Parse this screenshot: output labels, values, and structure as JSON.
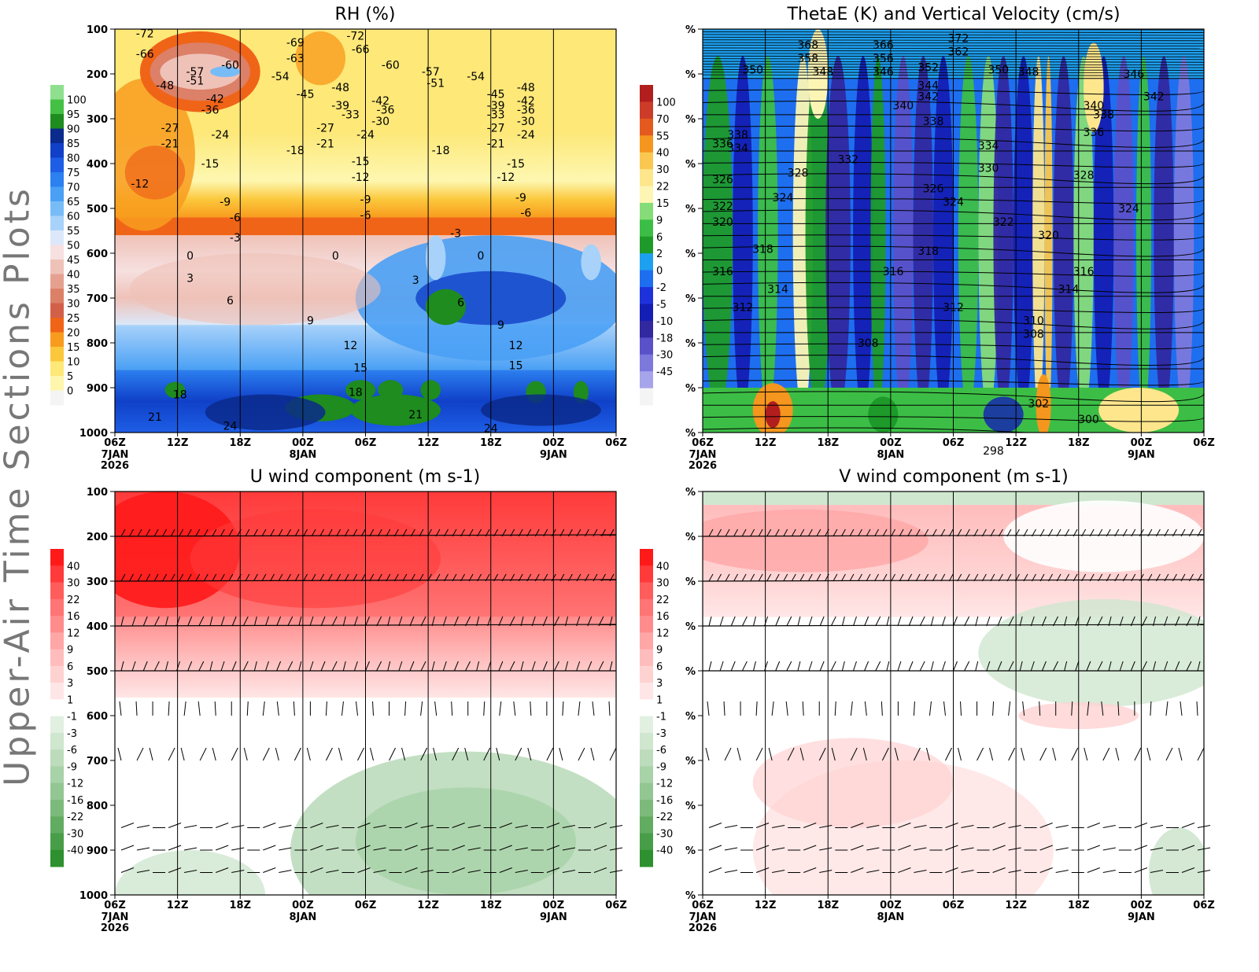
{
  "page": {
    "side_title": "Upper-Air Time Sections Plots"
  },
  "time_axis": {
    "labels": [
      "06Z",
      "12Z",
      "18Z",
      "00Z",
      "06Z",
      "12Z",
      "18Z",
      "00Z",
      "06Z"
    ],
    "date_labels": [
      {
        "index": 0,
        "lines": [
          "7JAN",
          "2026"
        ]
      },
      {
        "index": 3,
        "lines": [
          "8JAN"
        ]
      },
      {
        "index": 7,
        "lines": [
          "9JAN"
        ]
      }
    ]
  },
  "chart_data": [
    {
      "id": "rh",
      "type": "heatmap",
      "title": "RH (%)",
      "ylabel": "",
      "y_ticks": [
        "100",
        "200",
        "300",
        "400",
        "500",
        "600",
        "700",
        "800",
        "900",
        "1000"
      ],
      "ylim": [
        1000,
        100
      ],
      "colorbar": {
        "labels": [
          "100",
          "95",
          "90",
          "85",
          "80",
          "75",
          "70",
          "65",
          "60",
          "55",
          "50",
          "45",
          "40",
          "35",
          "30",
          "25",
          "20",
          "15",
          "10",
          "5",
          "0"
        ],
        "colors": [
          "#8ee08e",
          "#44c044",
          "#1e8c1e",
          "#0a2a8c",
          "#1040c8",
          "#1e5ee6",
          "#2c80f0",
          "#4aa0f5",
          "#78bcf7",
          "#a8d2fa",
          "#dce8fa",
          "#f6e0e0",
          "#efc2b8",
          "#e6a090",
          "#dc8068",
          "#d26048",
          "#f06418",
          "#f89c1e",
          "#fbc83c",
          "#fde878",
          "#fdf6ac",
          "#f4f4f4"
        ]
      },
      "contours": [
        {
          "text": "-72",
          "t": 0.06,
          "p": 110
        },
        {
          "text": "-66",
          "t": 0.06,
          "p": 155
        },
        {
          "text": "-69",
          "t": 0.36,
          "p": 130
        },
        {
          "text": "-72",
          "t": 0.48,
          "p": 115
        },
        {
          "text": "-66",
          "t": 0.49,
          "p": 145
        },
        {
          "text": "-63",
          "t": 0.36,
          "p": 165
        },
        {
          "text": "-60",
          "t": 0.55,
          "p": 180
        },
        {
          "text": "-57",
          "t": 0.63,
          "p": 195
        },
        {
          "text": "-60",
          "t": 0.23,
          "p": 180
        },
        {
          "text": "-57",
          "t": 0.16,
          "p": 195
        },
        {
          "text": "-51",
          "t": 0.16,
          "p": 215
        },
        {
          "text": "-54",
          "t": 0.33,
          "p": 205
        },
        {
          "text": "-48",
          "t": 0.1,
          "p": 225
        },
        {
          "text": "-51",
          "t": 0.64,
          "p": 220
        },
        {
          "text": "-54",
          "t": 0.72,
          "p": 205
        },
        {
          "text": "-48",
          "t": 0.45,
          "p": 230
        },
        {
          "text": "-48",
          "t": 0.82,
          "p": 230
        },
        {
          "text": "-45",
          "t": 0.38,
          "p": 245
        },
        {
          "text": "-45",
          "t": 0.76,
          "p": 245
        },
        {
          "text": "-42",
          "t": 0.2,
          "p": 255
        },
        {
          "text": "-42",
          "t": 0.53,
          "p": 260
        },
        {
          "text": "-42",
          "t": 0.82,
          "p": 260
        },
        {
          "text": "-39",
          "t": 0.45,
          "p": 270
        },
        {
          "text": "-39",
          "t": 0.76,
          "p": 270
        },
        {
          "text": "-36",
          "t": 0.19,
          "p": 280
        },
        {
          "text": "-36",
          "t": 0.54,
          "p": 280
        },
        {
          "text": "-36",
          "t": 0.82,
          "p": 280
        },
        {
          "text": "-33",
          "t": 0.47,
          "p": 290
        },
        {
          "text": "-33",
          "t": 0.76,
          "p": 290
        },
        {
          "text": "-30",
          "t": 0.53,
          "p": 305
        },
        {
          "text": "-30",
          "t": 0.82,
          "p": 305
        },
        {
          "text": "-27",
          "t": 0.11,
          "p": 320
        },
        {
          "text": "-27",
          "t": 0.42,
          "p": 320
        },
        {
          "text": "-27",
          "t": 0.76,
          "p": 320
        },
        {
          "text": "-24",
          "t": 0.21,
          "p": 335
        },
        {
          "text": "-24",
          "t": 0.5,
          "p": 335
        },
        {
          "text": "-24",
          "t": 0.82,
          "p": 335
        },
        {
          "text": "-21",
          "t": 0.11,
          "p": 355
        },
        {
          "text": "-21",
          "t": 0.42,
          "p": 355
        },
        {
          "text": "-21",
          "t": 0.76,
          "p": 355
        },
        {
          "text": "-18",
          "t": 0.36,
          "p": 370
        },
        {
          "text": "-18",
          "t": 0.65,
          "p": 370
        },
        {
          "text": "-15",
          "t": 0.19,
          "p": 400
        },
        {
          "text": "-15",
          "t": 0.49,
          "p": 395
        },
        {
          "text": "-15",
          "t": 0.8,
          "p": 400
        },
        {
          "text": "-12",
          "t": 0.05,
          "p": 445
        },
        {
          "text": "-12",
          "t": 0.49,
          "p": 430
        },
        {
          "text": "-12",
          "t": 0.78,
          "p": 430
        },
        {
          "text": "-9",
          "t": 0.22,
          "p": 485
        },
        {
          "text": "-9",
          "t": 0.5,
          "p": 480
        },
        {
          "text": "-9",
          "t": 0.81,
          "p": 475
        },
        {
          "text": "-6",
          "t": 0.24,
          "p": 520
        },
        {
          "text": "-6",
          "t": 0.5,
          "p": 515
        },
        {
          "text": "-6",
          "t": 0.82,
          "p": 510
        },
        {
          "text": "-3",
          "t": 0.24,
          "p": 565
        },
        {
          "text": "-3",
          "t": 0.68,
          "p": 555
        },
        {
          "text": "0",
          "t": 0.15,
          "p": 605
        },
        {
          "text": "0",
          "t": 0.44,
          "p": 605
        },
        {
          "text": "0",
          "t": 0.73,
          "p": 605
        },
        {
          "text": "3",
          "t": 0.15,
          "p": 655
        },
        {
          "text": "3",
          "t": 0.6,
          "p": 660
        },
        {
          "text": "6",
          "t": 0.23,
          "p": 705
        },
        {
          "text": "6",
          "t": 0.69,
          "p": 710
        },
        {
          "text": "9",
          "t": 0.39,
          "p": 750
        },
        {
          "text": "9",
          "t": 0.77,
          "p": 760
        },
        {
          "text": "12",
          "t": 0.47,
          "p": 805
        },
        {
          "text": "12",
          "t": 0.8,
          "p": 805
        },
        {
          "text": "15",
          "t": 0.49,
          "p": 855
        },
        {
          "text": "15",
          "t": 0.8,
          "p": 850
        },
        {
          "text": "18",
          "t": 0.13,
          "p": 915
        },
        {
          "text": "18",
          "t": 0.48,
          "p": 910
        },
        {
          "text": "21",
          "t": 0.08,
          "p": 965
        },
        {
          "text": "21",
          "t": 0.6,
          "p": 960
        },
        {
          "text": "24",
          "t": 0.23,
          "p": 985
        },
        {
          "text": "24",
          "t": 0.75,
          "p": 990
        }
      ]
    },
    {
      "id": "thetae",
      "type": "heatmap",
      "title": "ThetaE (K) and Vertical Velocity (cm/s)",
      "ylabel": "",
      "y_ticks": [
        "%",
        "%",
        "%",
        "%",
        "%",
        "%",
        "%",
        "%",
        "%",
        "%"
      ],
      "colorbar": {
        "labels": [
          "100",
          "70",
          "55",
          "40",
          "30",
          "22",
          "15",
          "9",
          "6",
          "2",
          "0",
          "-2",
          "-5",
          "-10",
          "-18",
          "-30",
          "-45"
        ],
        "colors": [
          "#b21e1e",
          "#cc3c28",
          "#e45a1e",
          "#f5961e",
          "#fac850",
          "#fde68c",
          "#fdf5b4",
          "#86dc78",
          "#3cbe46",
          "#1e9a2a",
          "#1ea0f0",
          "#1e6ef0",
          "#1e32dc",
          "#141eb4",
          "#3228a0",
          "#5a50c8",
          "#7c78dc",
          "#a6a4ea",
          "#f4f4f4"
        ]
      },
      "contours": [
        {
          "text": "368",
          "t": 0.21,
          "p": 135
        },
        {
          "text": "366",
          "t": 0.36,
          "p": 135
        },
        {
          "text": "372",
          "t": 0.51,
          "p": 120
        },
        {
          "text": "358",
          "t": 0.21,
          "p": 165
        },
        {
          "text": "356",
          "t": 0.36,
          "p": 165
        },
        {
          "text": "362",
          "t": 0.51,
          "p": 150
        },
        {
          "text": "350",
          "t": 0.1,
          "p": 190
        },
        {
          "text": "348",
          "t": 0.24,
          "p": 195
        },
        {
          "text": "346",
          "t": 0.36,
          "p": 195
        },
        {
          "text": "352",
          "t": 0.45,
          "p": 185
        },
        {
          "text": "350",
          "t": 0.59,
          "p": 190
        },
        {
          "text": "348",
          "t": 0.65,
          "p": 195
        },
        {
          "text": "346",
          "t": 0.86,
          "p": 200
        },
        {
          "text": "344",
          "t": 0.45,
          "p": 225
        },
        {
          "text": "342",
          "t": 0.45,
          "p": 250
        },
        {
          "text": "342",
          "t": 0.9,
          "p": 250
        },
        {
          "text": "340",
          "t": 0.4,
          "p": 270
        },
        {
          "text": "340",
          "t": 0.78,
          "p": 270
        },
        {
          "text": "338",
          "t": 0.07,
          "p": 335
        },
        {
          "text": "338",
          "t": 0.8,
          "p": 290
        },
        {
          "text": "338",
          "t": 0.46,
          "p": 305
        },
        {
          "text": "336",
          "t": 0.04,
          "p": 355
        },
        {
          "text": "336",
          "t": 0.78,
          "p": 330
        },
        {
          "text": "334",
          "t": 0.07,
          "p": 365
        },
        {
          "text": "334",
          "t": 0.57,
          "p": 360
        },
        {
          "text": "332",
          "t": 0.29,
          "p": 390
        },
        {
          "text": "330",
          "t": 0.57,
          "p": 410
        },
        {
          "text": "328",
          "t": 0.19,
          "p": 420
        },
        {
          "text": "328",
          "t": 0.76,
          "p": 425
        },
        {
          "text": "326",
          "t": 0.04,
          "p": 435
        },
        {
          "text": "326",
          "t": 0.46,
          "p": 455
        },
        {
          "text": "324",
          "t": 0.16,
          "p": 475
        },
        {
          "text": "324",
          "t": 0.5,
          "p": 485
        },
        {
          "text": "324",
          "t": 0.85,
          "p": 500
        },
        {
          "text": "322",
          "t": 0.04,
          "p": 495
        },
        {
          "text": "322",
          "t": 0.6,
          "p": 530
        },
        {
          "text": "320",
          "t": 0.04,
          "p": 530
        },
        {
          "text": "320",
          "t": 0.69,
          "p": 560
        },
        {
          "text": "318",
          "t": 0.12,
          "p": 590
        },
        {
          "text": "318",
          "t": 0.45,
          "p": 595
        },
        {
          "text": "316",
          "t": 0.04,
          "p": 640
        },
        {
          "text": "316",
          "t": 0.38,
          "p": 640
        },
        {
          "text": "316",
          "t": 0.76,
          "p": 640
        },
        {
          "text": "314",
          "t": 0.15,
          "p": 680
        },
        {
          "text": "314",
          "t": 0.73,
          "p": 680
        },
        {
          "text": "312",
          "t": 0.08,
          "p": 720
        },
        {
          "text": "312",
          "t": 0.5,
          "p": 720
        },
        {
          "text": "310",
          "t": 0.66,
          "p": 750
        },
        {
          "text": "308",
          "t": 0.33,
          "p": 800
        },
        {
          "text": "308",
          "t": 0.66,
          "p": 780
        },
        {
          "text": "302",
          "t": 0.67,
          "p": 935
        },
        {
          "text": "300",
          "t": 0.77,
          "p": 970
        },
        {
          "text": "298",
          "t": 0.58,
          "p": 1040
        }
      ]
    },
    {
      "id": "uwind",
      "type": "heatmap",
      "title": "U wind component (m s-1)",
      "ylabel": "",
      "y_ticks": [
        "100",
        "200",
        "300",
        "400",
        "500",
        "600",
        "700",
        "800",
        "900",
        "1000"
      ],
      "colorbar": {
        "labels": [
          "40",
          "30",
          "22",
          "16",
          "12",
          "9",
          "6",
          "3",
          "1",
          "-1",
          "-3",
          "-6",
          "-9",
          "-12",
          "-16",
          "-22",
          "-30",
          "-40"
        ],
        "colors": [
          "#ff1a1a",
          "#ff3a3a",
          "#ff5c5c",
          "#ff7474",
          "#ff8c8c",
          "#ffa6a6",
          "#ffbcbc",
          "#ffd2d2",
          "#ffe6e6",
          "#ffffff",
          "#e2f0e2",
          "#cfe6cf",
          "#bcdcbc",
          "#a8d2a8",
          "#92c692",
          "#7cba7c",
          "#62ac62",
          "#489e48",
          "#2e902e"
        ]
      }
    },
    {
      "id": "vwind",
      "type": "heatmap",
      "title": "V wind component (m s-1)",
      "ylabel": "",
      "y_ticks": [
        "%",
        "%",
        "%",
        "%",
        "%",
        "%",
        "%",
        "%",
        "%",
        "%"
      ],
      "colorbar": {
        "labels": [
          "40",
          "30",
          "22",
          "16",
          "12",
          "9",
          "6",
          "3",
          "1",
          "-1",
          "-3",
          "-6",
          "-9",
          "-12",
          "-16",
          "-22",
          "-30",
          "-40"
        ],
        "colors": [
          "#ff1a1a",
          "#ff3a3a",
          "#ff5c5c",
          "#ff7474",
          "#ff8c8c",
          "#ffa6a6",
          "#ffbcbc",
          "#ffd2d2",
          "#ffe6e6",
          "#ffffff",
          "#e2f0e2",
          "#cfe6cf",
          "#bcdcbc",
          "#a8d2a8",
          "#92c692",
          "#7cba7c",
          "#62ac62",
          "#489e48",
          "#2e902e"
        ]
      }
    }
  ]
}
